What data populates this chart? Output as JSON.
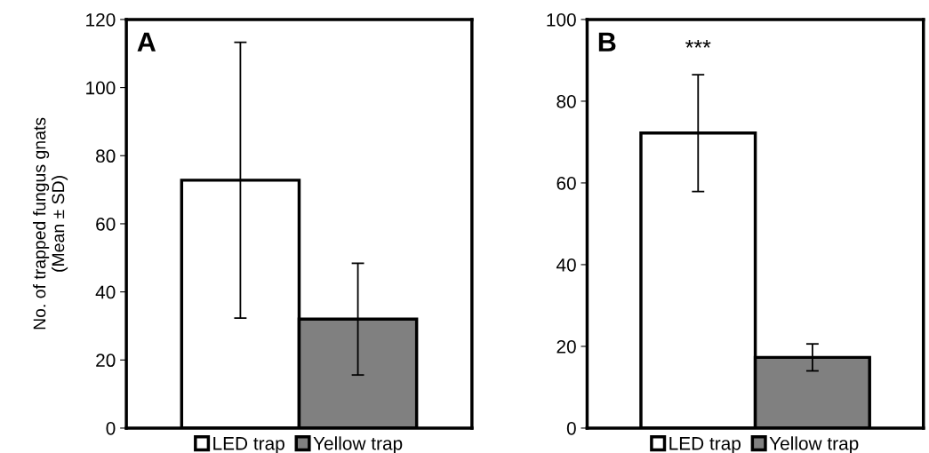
{
  "chart_data": [
    {
      "type": "bar",
      "title": "A",
      "ylabel": "No. of trapped fungus gnats\n(Mean ± SD)",
      "categories": [
        null
      ],
      "ylim": [
        0,
        120
      ],
      "yticks": [
        0,
        20,
        40,
        60,
        80,
        100,
        120
      ],
      "legend": "bottom",
      "grid": false,
      "series": [
        {
          "name": "LED trap",
          "color": "#ffffff",
          "values": [
            72.8
          ],
          "errors": [
            40.5
          ]
        },
        {
          "name": "Yellow trap",
          "color": "#808080",
          "values": [
            32.0
          ],
          "errors": [
            16.4
          ]
        }
      ]
    },
    {
      "type": "bar",
      "title": "B",
      "categories": [
        null
      ],
      "ylim": [
        0,
        100
      ],
      "yticks": [
        0,
        20,
        40,
        60,
        80,
        100
      ],
      "legend": "bottom",
      "grid": false,
      "annotations": [
        "***"
      ],
      "series": [
        {
          "name": "LED trap",
          "color": "#ffffff",
          "values": [
            72.2
          ],
          "errors": [
            14.3
          ]
        },
        {
          "name": "Yellow trap",
          "color": "#808080",
          "values": [
            17.3
          ],
          "errors": [
            3.3
          ]
        }
      ]
    }
  ]
}
